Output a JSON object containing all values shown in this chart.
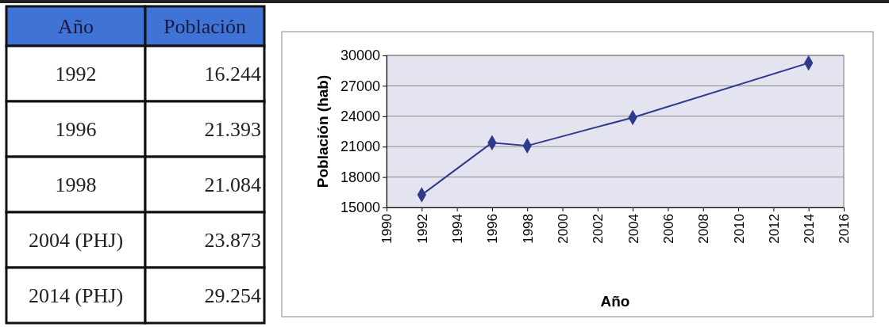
{
  "chart_data": {
    "type": "line",
    "xlabel": "Año",
    "ylabel": "Población (hab)",
    "x": [
      1992,
      1996,
      1998,
      2004,
      2014
    ],
    "series": [
      {
        "color": "#2e3a8c",
        "values": [
          16244,
          21393,
          21084,
          23873,
          29254
        ]
      }
    ],
    "annotations": [
      "Año",
      "Población",
      "1992",
      "16.244",
      "1996",
      "21.393",
      "1998",
      "21.084",
      "2004 (PHJ)",
      "23.873",
      "2014 (PHJ)",
      "29.254"
    ],
    "xlim": [
      1990,
      2016
    ],
    "xticks": [
      1990,
      1992,
      1994,
      1996,
      1998,
      2000,
      2002,
      2004,
      2006,
      2008,
      2010,
      2012,
      2014,
      2016
    ],
    "ylim": [
      15000,
      30000
    ],
    "yticks": [
      15000,
      18000,
      21000,
      24000,
      27000,
      30000
    ],
    "grid": "y",
    "marker": "diamond",
    "line_style": "solid"
  }
}
